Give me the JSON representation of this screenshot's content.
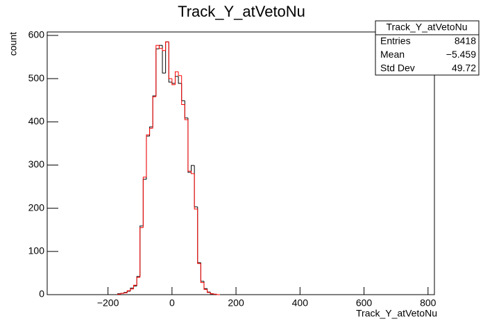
{
  "chart_data": {
    "type": "histogram",
    "title": "Track_Y_atVetoNu",
    "x_label": "Track_Y_atVetoNu",
    "y_label": "count",
    "bins": [
      -170,
      -160,
      -150,
      -140,
      -130,
      -120,
      -110,
      -100,
      -90,
      -80,
      -70,
      -60,
      -50,
      -40,
      -30,
      -20,
      -10,
      0,
      10,
      20,
      30,
      40,
      50,
      60,
      70,
      80,
      90,
      100,
      110,
      120,
      130,
      140,
      150
    ],
    "series": [
      {
        "name": "black",
        "color": "#000000",
        "values": [
          2,
          3,
          5,
          8,
          15,
          20,
          42,
          159,
          267,
          367,
          388,
          460,
          569,
          577,
          513,
          585,
          492,
          489,
          505,
          489,
          449,
          409,
          283,
          299,
          203,
          74,
          31,
          14,
          6,
          2,
          1,
          0
        ]
      },
      {
        "name": "red",
        "color": "#ff0000",
        "values": [
          1,
          3,
          4,
          9,
          13,
          22,
          40,
          155,
          272,
          370,
          385,
          458,
          577,
          570,
          565,
          585,
          500,
          486,
          516,
          507,
          440,
          405,
          286,
          280,
          198,
          72,
          28,
          12,
          5,
          2,
          1,
          0
        ]
      }
    ],
    "xlim": [
      -390,
      820
    ],
    "ylim": [
      0,
      608
    ],
    "xticks": [
      {
        "value": -200,
        "label": "−200"
      },
      0,
      200,
      400,
      600,
      800
    ],
    "yticks": [
      0,
      100,
      200,
      300,
      400,
      500,
      600
    ],
    "stats": {
      "title": "Track_Y_atVetoNu",
      "rows": [
        [
          "Entries",
          "8418"
        ],
        [
          "Mean",
          "−5.459"
        ],
        [
          "Std Dev",
          "49.72"
        ]
      ]
    }
  }
}
